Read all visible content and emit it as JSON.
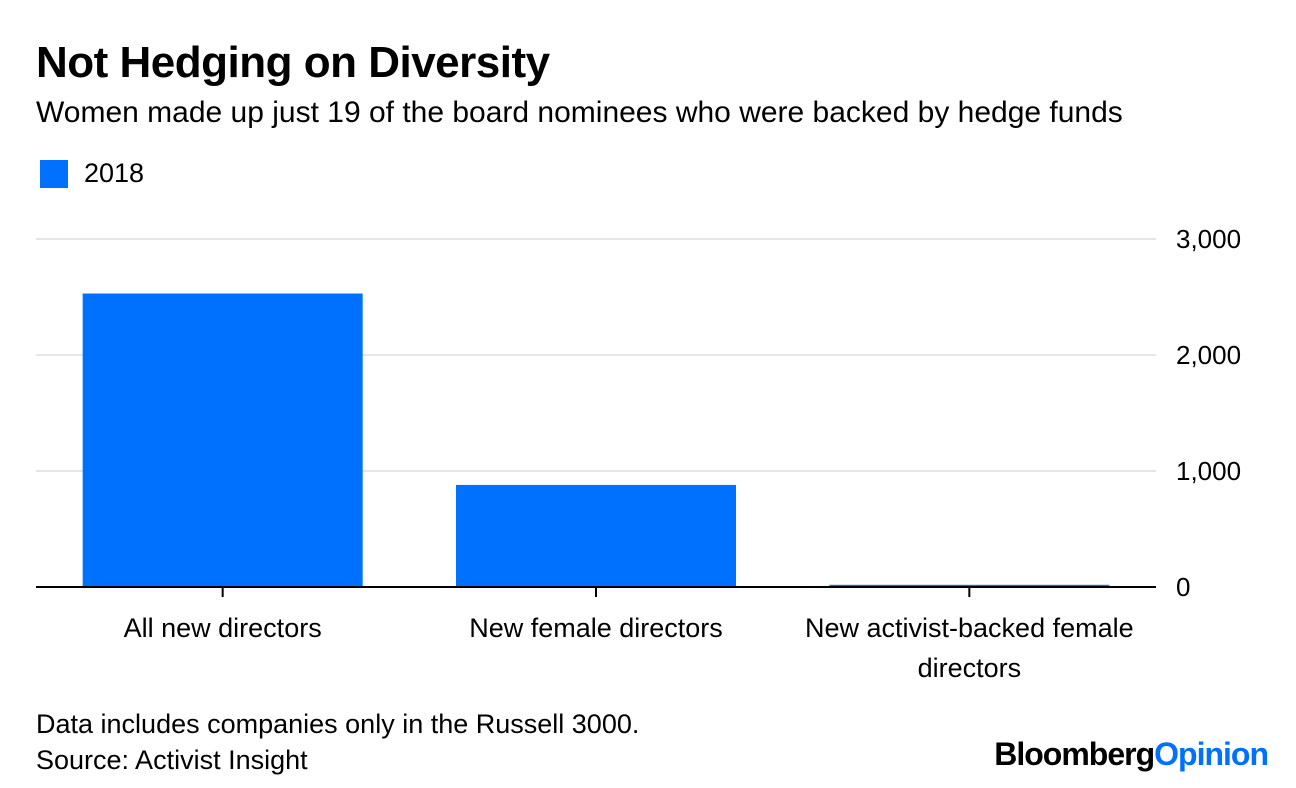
{
  "title": "Not Hedging on Diversity",
  "subtitle": "Women made up just 19 of the board nominees who were backed by hedge funds",
  "legend": {
    "label": "2018",
    "color": "#0070ff"
  },
  "footnote": {
    "note": "Data includes companies only in the Russell 3000.",
    "source": "Source: Activist Insight"
  },
  "brand": {
    "part1": "Bloomberg",
    "part2": "Opinion"
  },
  "chart_data": {
    "type": "bar",
    "categories": [
      [
        "All new directors"
      ],
      [
        "New female directors"
      ],
      [
        "New activist-backed female",
        "directors"
      ]
    ],
    "series": [
      {
        "name": "2018",
        "values": [
          2530,
          880,
          19
        ],
        "color": "#0070ff"
      }
    ],
    "ylim": [
      0,
      3000
    ],
    "yticks": [
      0,
      1000,
      2000,
      3000
    ],
    "ytick_labels": [
      "0",
      "1,000",
      "2,000",
      "3,000"
    ],
    "y_axis_side": "right",
    "grid": true,
    "legend_position": "top-left"
  }
}
